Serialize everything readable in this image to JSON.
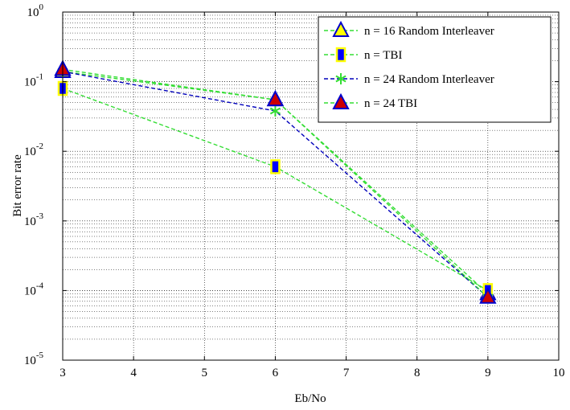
{
  "chart_data": {
    "type": "line",
    "title": "",
    "xlabel": "Eb/No",
    "ylabel": "Bit error rate",
    "xlim": [
      3,
      10
    ],
    "ylim": [
      1e-05,
      1
    ],
    "yscale": "log",
    "grid": true,
    "xticks": [
      "3",
      "4",
      "5",
      "6",
      "7",
      "8",
      "9",
      "10"
    ],
    "yticks": [
      {
        "base": "10",
        "exp": "-5"
      },
      {
        "base": "10",
        "exp": "-4"
      },
      {
        "base": "10",
        "exp": "-3"
      },
      {
        "base": "10",
        "exp": "-2"
      },
      {
        "base": "10",
        "exp": "-1"
      },
      {
        "base": "10",
        "exp": "0"
      }
    ],
    "legend_position": "top-right",
    "series": [
      {
        "name": "n = 16 Random Interleaver",
        "x": [
          3,
          6,
          9
        ],
        "y": [
          0.14,
          0.055,
          9e-05
        ],
        "line_color": "#33dd33",
        "line_style": "dashed",
        "marker": "triangle",
        "marker_fill": "#ffff00",
        "marker_edge": "#0000cc"
      },
      {
        "name": "n = TBI",
        "x": [
          3,
          6,
          9
        ],
        "y": [
          0.08,
          0.006,
          0.0001
        ],
        "line_color": "#33dd33",
        "line_style": "dashed",
        "marker": "square",
        "marker_fill": "#0000ff",
        "marker_edge": "#ffff00"
      },
      {
        "name": "n = 24 Random Interleaver",
        "x": [
          3,
          6,
          9
        ],
        "y": [
          0.14,
          0.038,
          8e-05
        ],
        "line_color": "#0000bb",
        "line_style": "dashed",
        "marker": "star",
        "marker_fill": "#33dd33",
        "marker_edge": "#33dd33"
      },
      {
        "name": "n = 24 TBI",
        "x": [
          3,
          6,
          9
        ],
        "y": [
          0.15,
          0.055,
          8e-05
        ],
        "line_color": "#33dd33",
        "line_style": "dashed",
        "marker": "triangle",
        "marker_fill": "#cc0000",
        "marker_edge": "#0000cc"
      }
    ]
  }
}
